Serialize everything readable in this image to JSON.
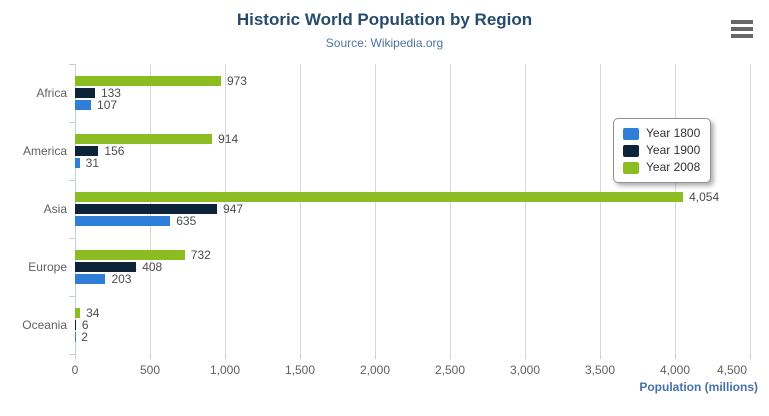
{
  "header": {
    "title": "Historic World Population by Region",
    "subtitle": "Source: Wikipedia.org"
  },
  "export_menu": {
    "icon": "hamburger-menu-icon",
    "tooltip": "Chart context menu"
  },
  "legend": {
    "position": "right",
    "items": [
      {
        "label": "Year 1800",
        "color": "#2f7ed8"
      },
      {
        "label": "Year 1900",
        "color": "#0d233a"
      },
      {
        "label": "Year 2008",
        "color": "#8bbc21"
      }
    ]
  },
  "chart_data": {
    "type": "bar",
    "orientation": "horizontal",
    "title": "Historic World Population by Region",
    "subtitle": "Source: Wikipedia.org",
    "categories": [
      "Africa",
      "America",
      "Asia",
      "Europe",
      "Oceania"
    ],
    "series": [
      {
        "name": "Year 1800",
        "color": "#2f7ed8",
        "values": [
          107,
          31,
          635,
          203,
          2
        ],
        "labels": [
          "107",
          "31",
          "635",
          "203",
          "2"
        ]
      },
      {
        "name": "Year 1900",
        "color": "#0d233a",
        "values": [
          133,
          156,
          947,
          408,
          6
        ],
        "labels": [
          "133",
          "156",
          "947",
          "408",
          "6"
        ]
      },
      {
        "name": "Year 2008",
        "color": "#8bbc21",
        "values": [
          973,
          914,
          4054,
          732,
          34
        ],
        "labels": [
          "973",
          "914",
          "4,054",
          "732",
          "34"
        ]
      }
    ],
    "bar_order_top_to_bottom": [
      "Year 2008",
      "Year 1900",
      "Year 1800"
    ],
    "xlabel": "Population (millions)",
    "ylabel": "",
    "xlim": [
      0,
      4500
    ],
    "tick_interval": 500,
    "x_tick_labels": [
      "0",
      "500",
      "1,000",
      "1,500",
      "2,000",
      "2,500",
      "3,000",
      "3,500",
      "4,000",
      "4,500"
    ],
    "grid": true,
    "legend_position": "right",
    "data_labels": "outside-end"
  },
  "colors": {
    "title": "#274b6d",
    "subtitle": "#4d759e",
    "axis_title": "#4572a7",
    "axis_labels": "#606060",
    "data_labels": "#4d4d4d",
    "gridline": "#d8d8d8",
    "axis_line": "#c0d0e0",
    "legend_border": "#909090",
    "background": "#ffffff"
  }
}
